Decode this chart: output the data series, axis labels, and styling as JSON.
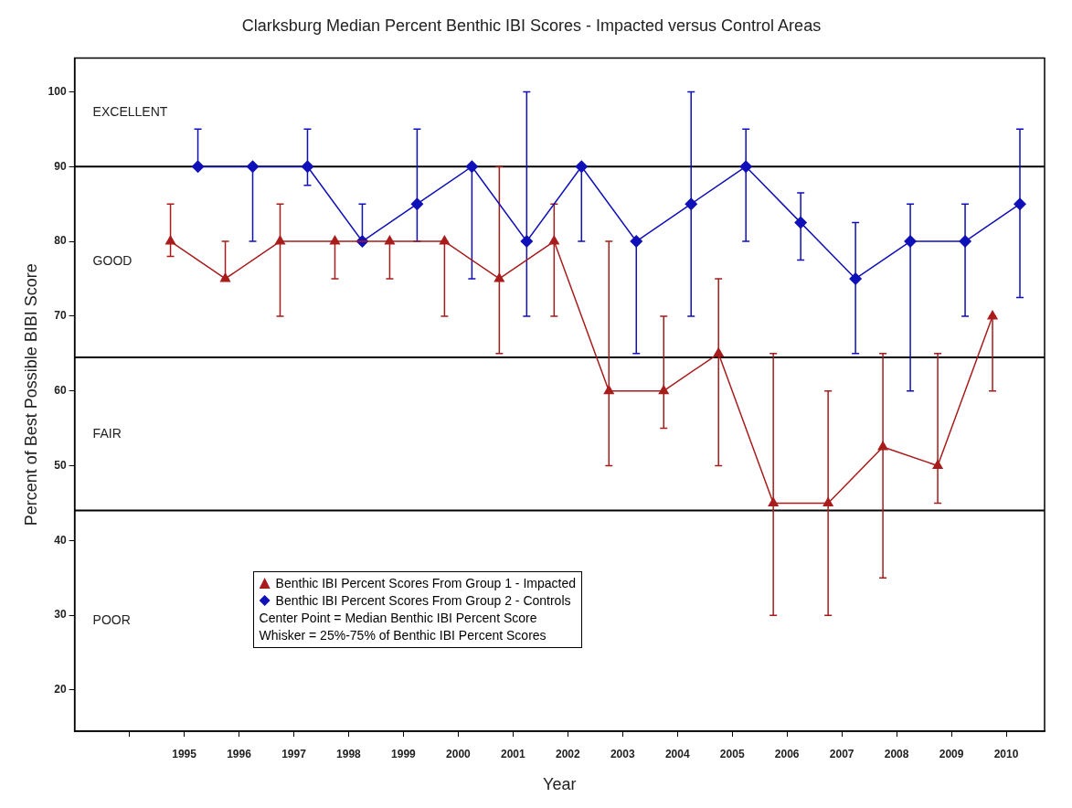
{
  "chart_data": {
    "type": "line",
    "title": "Clarksburg Median Percent Benthic IBI Scores - Impacted versus Control Areas",
    "xlabel": "Year",
    "ylabel": "Percent of Best Possible BIBI Score",
    "xlim": [
      1993,
      2010.7
    ],
    "ylim": [
      14.5,
      104.5
    ],
    "xticks": [
      {
        "value": 1994,
        "label": null
      },
      1995,
      1996,
      1997,
      1998,
      1999,
      2000,
      2001,
      2002,
      2003,
      2004,
      2005,
      2006,
      2007,
      2008,
      2009,
      2010
    ],
    "yticks": [
      20,
      30,
      40,
      50,
      60,
      70,
      80,
      90,
      100
    ],
    "grid": false,
    "legend": "bottom left",
    "line_style": "solid",
    "series": [
      {
        "name": "Benthic IBI Percent Scores From Group 1 - Impacted",
        "color": "#a81c1c",
        "marker": "triangle",
        "x": [
          1994.75,
          1995.75,
          1996.75,
          1997.75,
          1998.75,
          1999.75,
          2000.75,
          2001.75,
          2002.75,
          2003.75,
          2004.75,
          2005.75,
          2006.75,
          2007.75,
          2008.75,
          2009.75
        ],
        "values": [
          80,
          75,
          80,
          80,
          80,
          80,
          75,
          80,
          60,
          60,
          65,
          45,
          45,
          52.5,
          50,
          70
        ],
        "errors": [
          [
            78,
            85
          ],
          [
            75,
            80
          ],
          [
            70,
            85
          ],
          [
            75,
            80
          ],
          [
            75,
            80
          ],
          [
            70,
            80
          ],
          [
            65,
            90
          ],
          [
            70,
            85
          ],
          [
            50,
            80
          ],
          [
            55,
            70
          ],
          [
            50,
            75
          ],
          [
            30,
            65
          ],
          [
            30,
            60
          ],
          [
            35,
            65
          ],
          [
            45,
            65
          ],
          [
            60,
            70
          ]
        ]
      },
      {
        "name": "Benthic IBI Percent Scores From Group 2 - Controls",
        "color": "#1010b8",
        "marker": "diamond",
        "x": [
          1995.25,
          1996.25,
          1997.25,
          1998.25,
          1999.25,
          2000.25,
          2001.25,
          2002.25,
          2003.25,
          2004.25,
          2005.25,
          2006.25,
          2007.25,
          2008.25,
          2009.25,
          2010.25
        ],
        "values": [
          90,
          90,
          90,
          80,
          85,
          90,
          80,
          90,
          80,
          85,
          90,
          82.5,
          75,
          80,
          80,
          85
        ],
        "errors": [
          [
            90,
            95
          ],
          [
            80,
            90
          ],
          [
            87.5,
            95
          ],
          [
            80,
            85
          ],
          [
            80,
            95
          ],
          [
            75,
            90
          ],
          [
            70,
            100
          ],
          [
            80,
            90
          ],
          [
            65,
            80
          ],
          [
            70,
            100
          ],
          [
            80,
            95
          ],
          [
            77.5,
            86.5
          ],
          [
            65,
            82.5
          ],
          [
            60,
            85
          ],
          [
            70,
            85
          ],
          [
            72.5,
            95
          ]
        ]
      }
    ],
    "ref_lines": [
      {
        "axis": "y",
        "value": 90,
        "color": "#000000"
      },
      {
        "axis": "y",
        "value": 64.5,
        "color": "#000000"
      },
      {
        "axis": "y",
        "value": 44,
        "color": "#000000"
      }
    ],
    "annotations": [
      "EXCELLENT",
      "GOOD",
      "FAIR",
      "POOR",
      "Center Point =  Median Benthic IBI Percent Score",
      "Whisker = 25%-75% of Benthic IBI Percent Scores"
    ]
  }
}
